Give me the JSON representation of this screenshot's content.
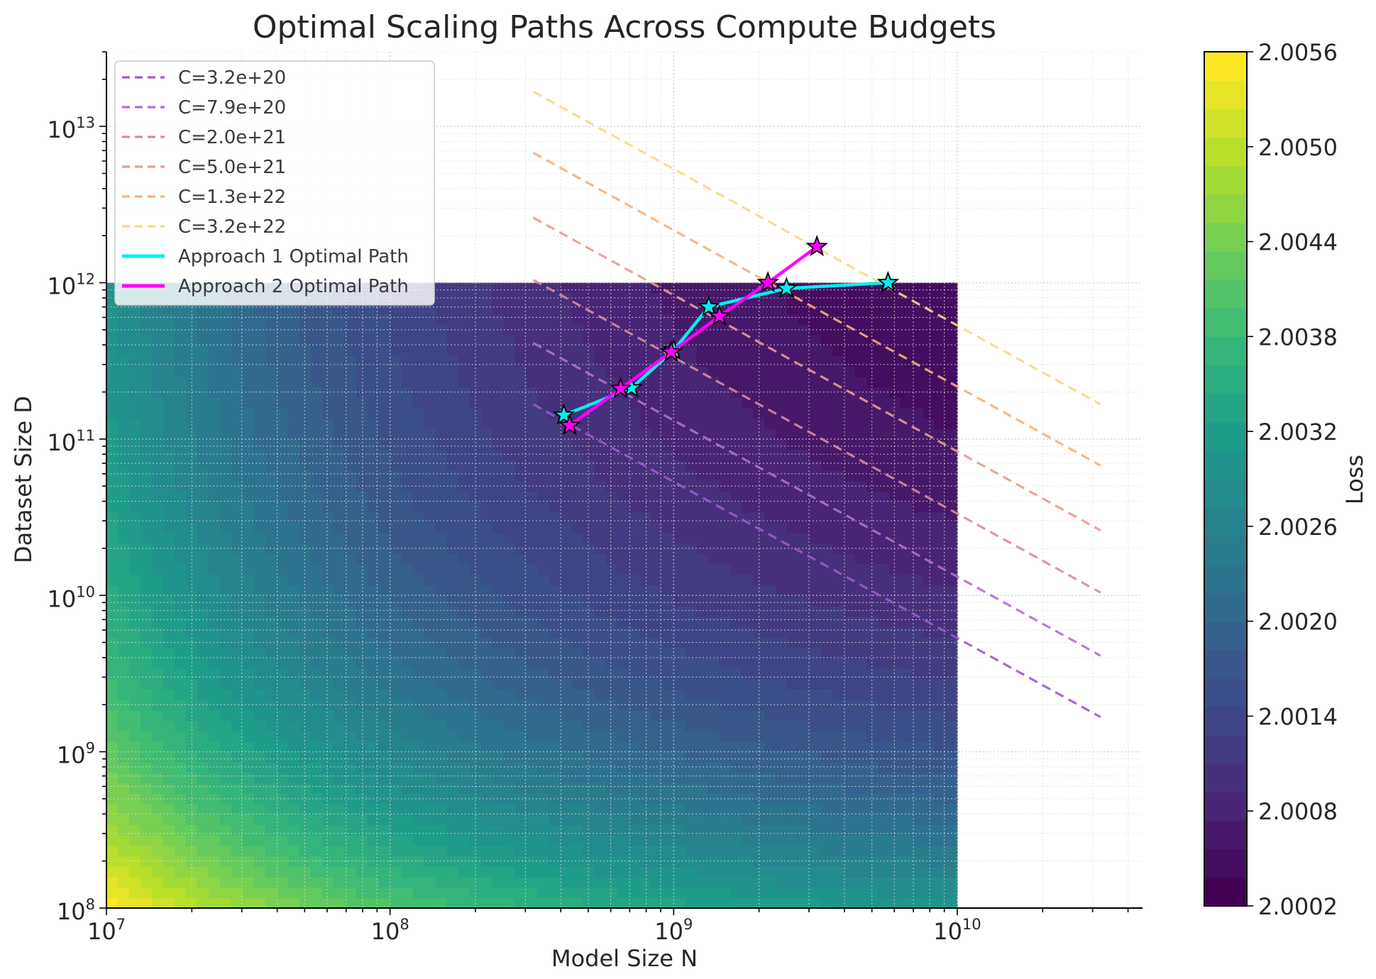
{
  "chart_data": {
    "type": "heatmap",
    "title": "Optimal Scaling Paths Across Compute Budgets",
    "xlabel": "Model Size N",
    "ylabel": "Dataset Size D",
    "x_scale": "log",
    "y_scale": "log",
    "xlim": [
      10000000.0,
      45000000000.0
    ],
    "ylim": [
      100000000.0,
      30000000000000.0
    ],
    "x_ticks": [
      {
        "value": 10000000.0,
        "base": "10",
        "exp": "7"
      },
      {
        "value": 100000000.0,
        "base": "10",
        "exp": "8"
      },
      {
        "value": 1000000000.0,
        "base": "10",
        "exp": "9"
      },
      {
        "value": 10000000000.0,
        "base": "10",
        "exp": "10"
      }
    ],
    "y_ticks": [
      {
        "value": 100000000.0,
        "base": "10",
        "exp": "8"
      },
      {
        "value": 1000000000.0,
        "base": "10",
        "exp": "9"
      },
      {
        "value": 10000000000.0,
        "base": "10",
        "exp": "10"
      },
      {
        "value": 100000000000.0,
        "base": "10",
        "exp": "11"
      },
      {
        "value": 1000000000000.0,
        "base": "10",
        "exp": "12"
      },
      {
        "value": 10000000000000.0,
        "base": "10",
        "exp": "13"
      }
    ],
    "grid": true,
    "legend_position": "upper left",
    "heatmap": {
      "x_range": [
        10000000.0,
        10000000000.0
      ],
      "y_range": [
        100000000.0,
        1000000000000.0
      ],
      "colormap": "viridis",
      "levels": 30,
      "loss_range": [
        2.0002,
        2.0056
      ]
    },
    "colorbar": {
      "label": "Loss",
      "ticks": [
        "2.0002",
        "2.0008",
        "2.0014",
        "2.0020",
        "2.0026",
        "2.0032",
        "2.0038",
        "2.0044",
        "2.0050",
        "2.0056"
      ]
    },
    "compute_lines": [
      {
        "name": "C=3.2e+20",
        "C": 3.2e+20,
        "color": "#9b59d0"
      },
      {
        "name": "C=7.9e+20",
        "C": 7.9e+20,
        "color": "#b26fcf"
      },
      {
        "name": "C=2.0e+21",
        "C": 2e+21,
        "color": "#d98aa0"
      },
      {
        "name": "C=5.0e+21",
        "C": 5e+21,
        "color": "#eb9a94"
      },
      {
        "name": "C=1.3e+22",
        "C": 1.3e+22,
        "color": "#f5b27a"
      },
      {
        "name": "C=3.2e+22",
        "C": 3.2e+22,
        "color": "#f7d98a"
      }
    ],
    "compute_line_x_range": [
      320000000.0,
      32000000000.0
    ],
    "series": [
      {
        "name": "Approach 1 Optimal Path",
        "color": "#00f0f0",
        "x": [
          410000000.0,
          710000000.0,
          1000000000.0,
          1330000000.0,
          2500000000.0,
          5700000000.0
        ],
        "y": [
          142000000000.0,
          212000000000.0,
          370000000000.0,
          700000000000.0,
          920000000000.0,
          1000000000000.0
        ]
      },
      {
        "name": "Approach 2 Optimal Path",
        "color": "#ff00ff",
        "x": [
          430000000.0,
          650000000.0,
          980000000.0,
          1450000000.0,
          2150000000.0,
          3200000000.0
        ],
        "y": [
          122000000000.0,
          210000000000.0,
          360000000000.0,
          610000000000.0,
          1000000000000.0,
          1700000000000.0
        ]
      }
    ]
  }
}
